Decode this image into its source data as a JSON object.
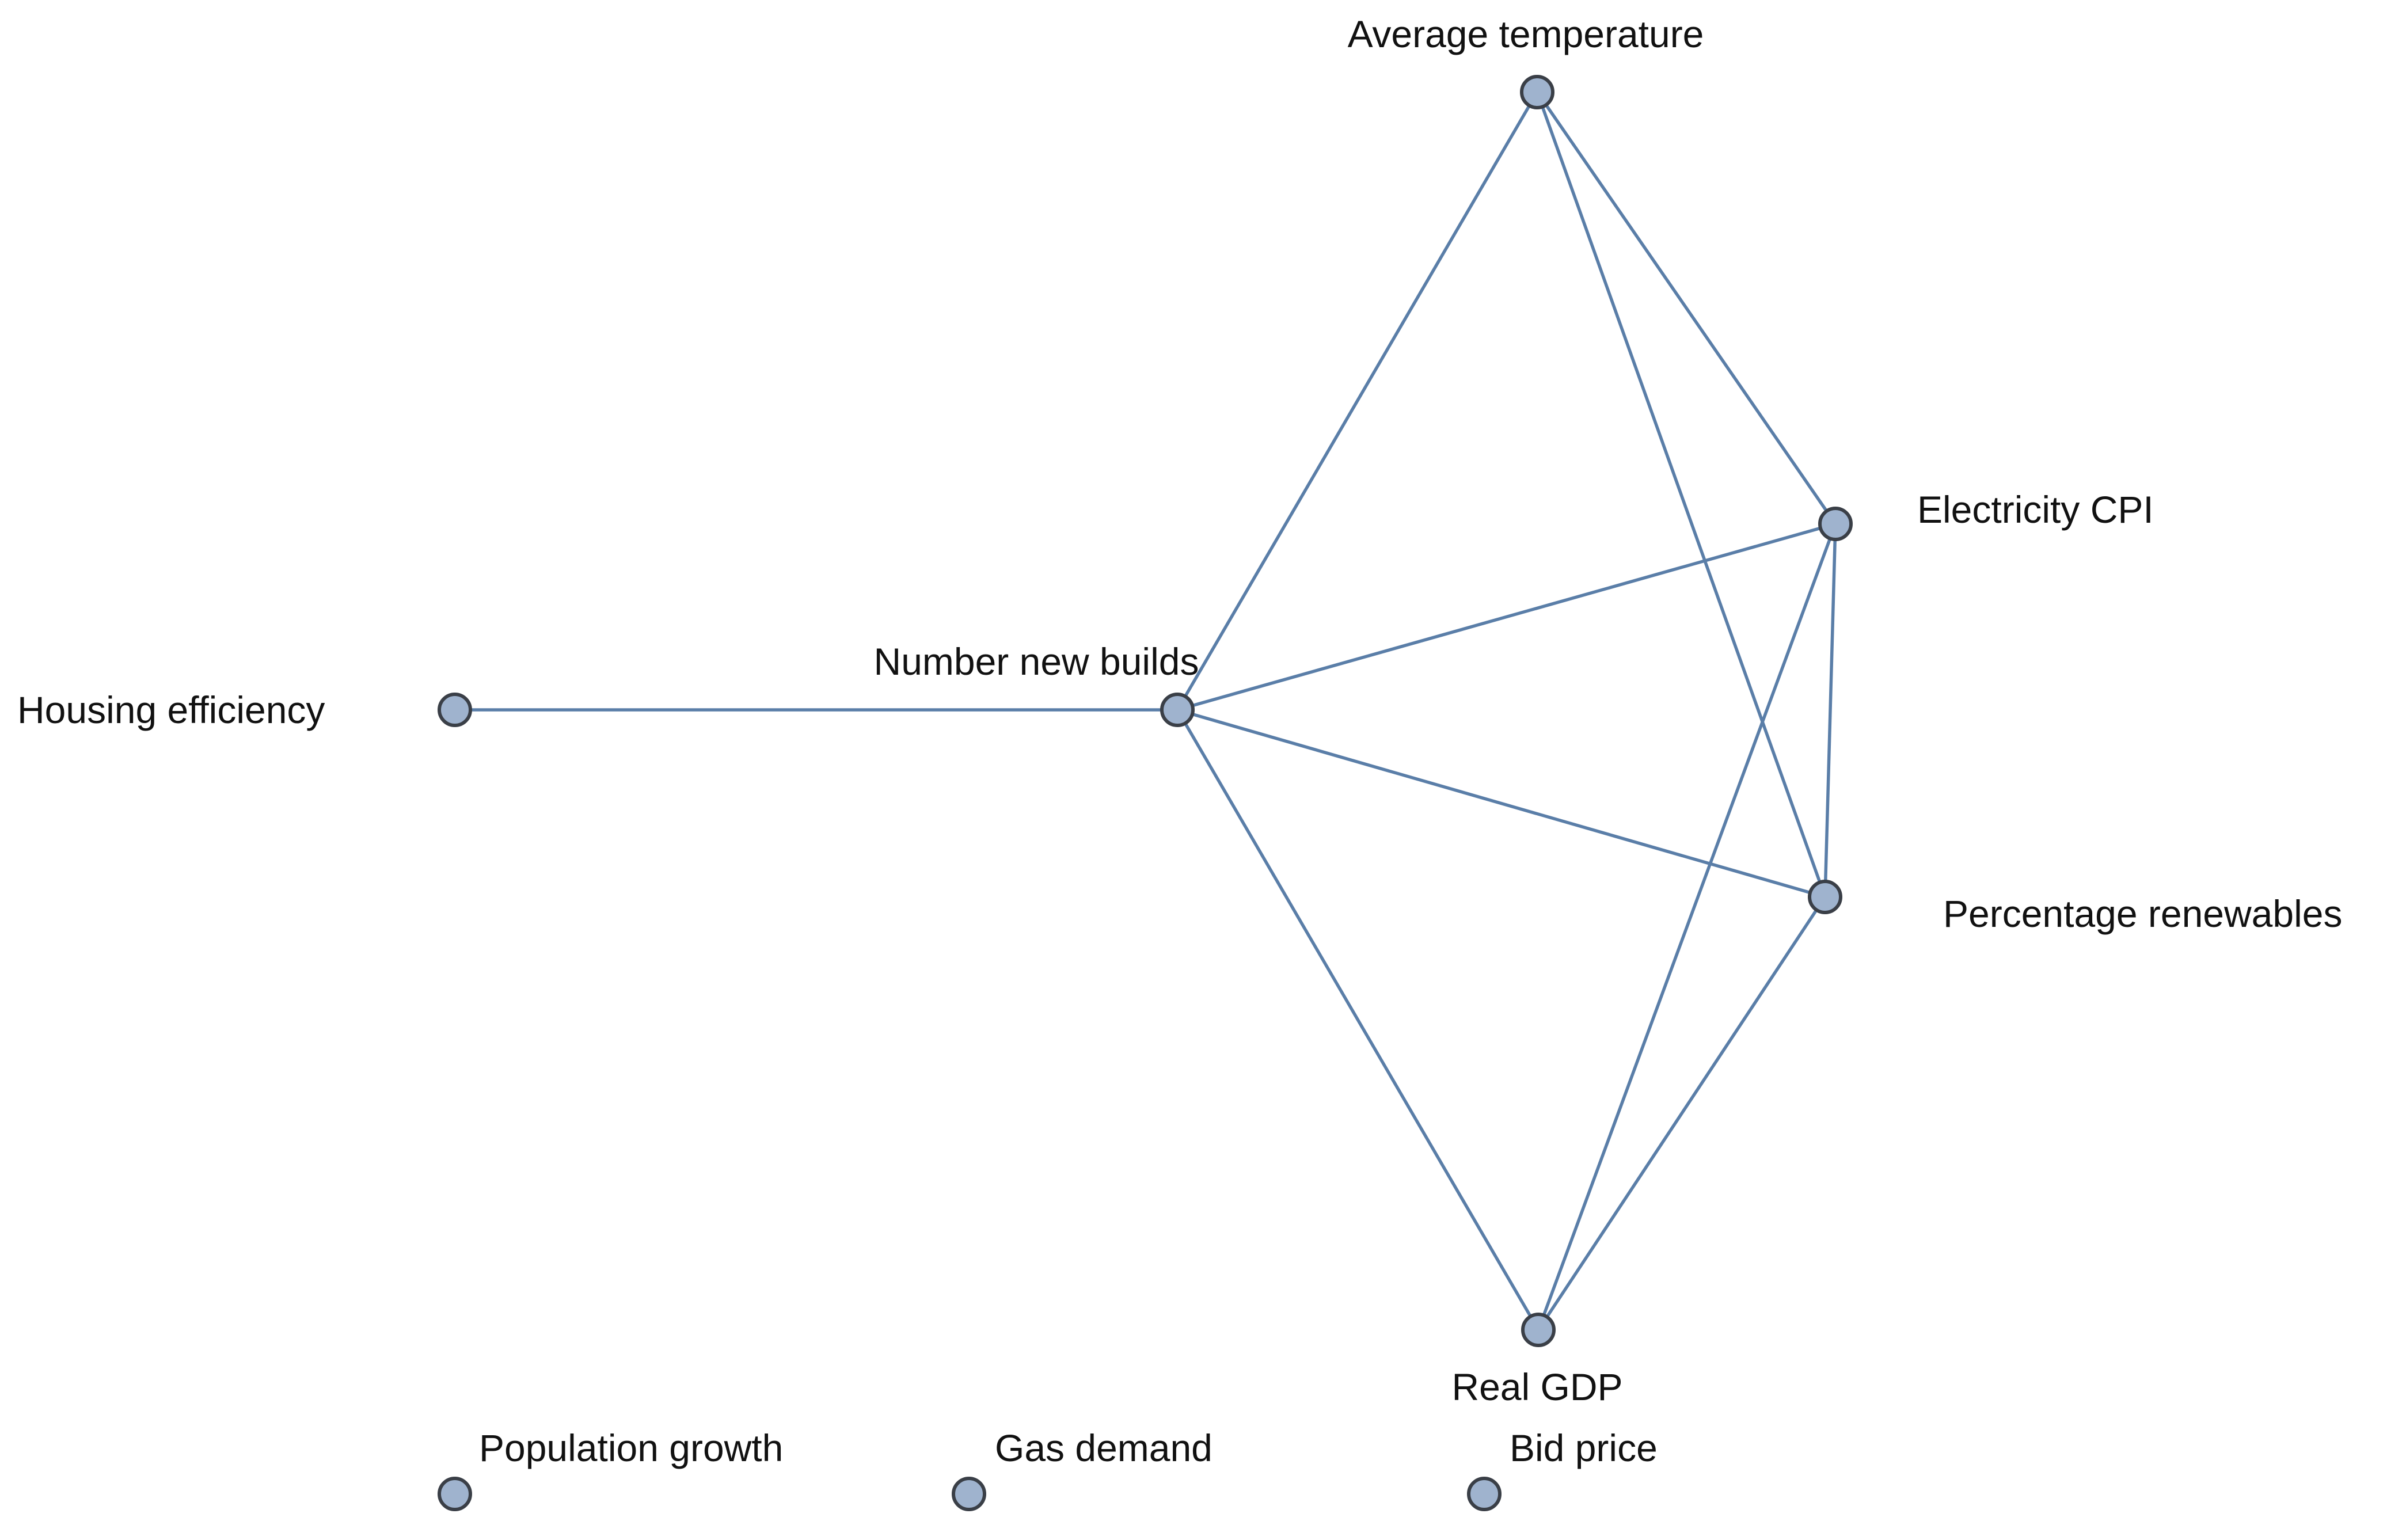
{
  "colors": {
    "edge": "#5a7ea8",
    "node_fill": "#9fb3ce",
    "node_stroke": "#3a3f47",
    "label": "#111111",
    "background": "#ffffff"
  },
  "nodes": [
    {
      "id": "avg_temp",
      "label": "Average temperature"
    },
    {
      "id": "elec_cpi",
      "label": "Electricity CPI"
    },
    {
      "id": "new_builds",
      "label": "Number new builds"
    },
    {
      "id": "housing_eff",
      "label": "Housing efficiency"
    },
    {
      "id": "pct_renew",
      "label": "Percentage renewables"
    },
    {
      "id": "real_gdp",
      "label": "Real GDP"
    },
    {
      "id": "pop_growth",
      "label": "Population growth"
    },
    {
      "id": "gas_demand",
      "label": "Gas demand"
    },
    {
      "id": "bid_price",
      "label": "Bid price"
    }
  ],
  "edges": [
    [
      "housing_eff",
      "new_builds"
    ],
    [
      "new_builds",
      "avg_temp"
    ],
    [
      "new_builds",
      "elec_cpi"
    ],
    [
      "new_builds",
      "pct_renew"
    ],
    [
      "new_builds",
      "real_gdp"
    ],
    [
      "avg_temp",
      "elec_cpi"
    ],
    [
      "avg_temp",
      "pct_renew"
    ],
    [
      "elec_cpi",
      "pct_renew"
    ],
    [
      "elec_cpi",
      "real_gdp"
    ],
    [
      "pct_renew",
      "real_gdp"
    ]
  ]
}
